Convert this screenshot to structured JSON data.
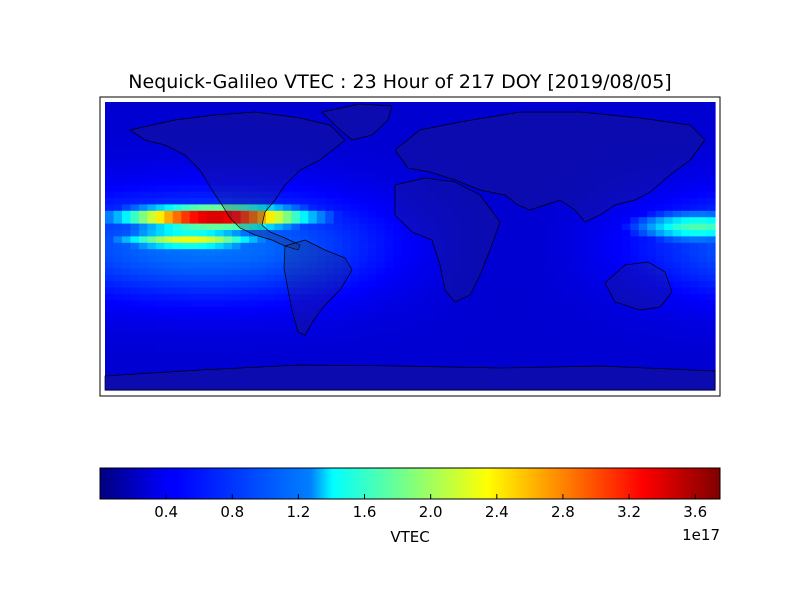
{
  "chart_data": {
    "type": "heatmap",
    "title": "Nequick-Galileo VTEC : 23 Hour of 217 DOY [2019/08/05]",
    "colormap": "jet",
    "grid": false,
    "colorbar": {
      "label": "VTEC",
      "range": [
        0.0,
        3.75
      ],
      "ticks": [
        0.4,
        0.8,
        1.2,
        1.6,
        2.0,
        2.4,
        2.8,
        3.2,
        3.6
      ],
      "tick_labels": [
        "0.4",
        "0.8",
        "1.2",
        "1.6",
        "2.0",
        "2.4",
        "2.8",
        "3.2",
        "3.6"
      ],
      "exponent_label": "1e17",
      "orientation": "horizontal"
    },
    "map": {
      "projection": "cylindrical",
      "lon_range": [
        -180,
        180
      ],
      "lat_range": [
        -90,
        90
      ],
      "features": [
        "coastlines",
        "country borders"
      ]
    },
    "field_features": [
      {
        "desc": "maximum band",
        "lon": -115,
        "lat": 18,
        "lon_width": 55,
        "lat_width": 7,
        "value": 3.7
      },
      {
        "desc": "secondary band",
        "lon": -130,
        "lat": 4,
        "lon_width": 45,
        "lat_width": 6,
        "value": 2.3
      },
      {
        "desc": "west pacific crest",
        "lon": 170,
        "lat": 12,
        "lon_width": 40,
        "lat_width": 10,
        "value": 1.7
      },
      {
        "desc": "background",
        "lon": 0,
        "lat": 0,
        "value": 0.3
      }
    ]
  }
}
